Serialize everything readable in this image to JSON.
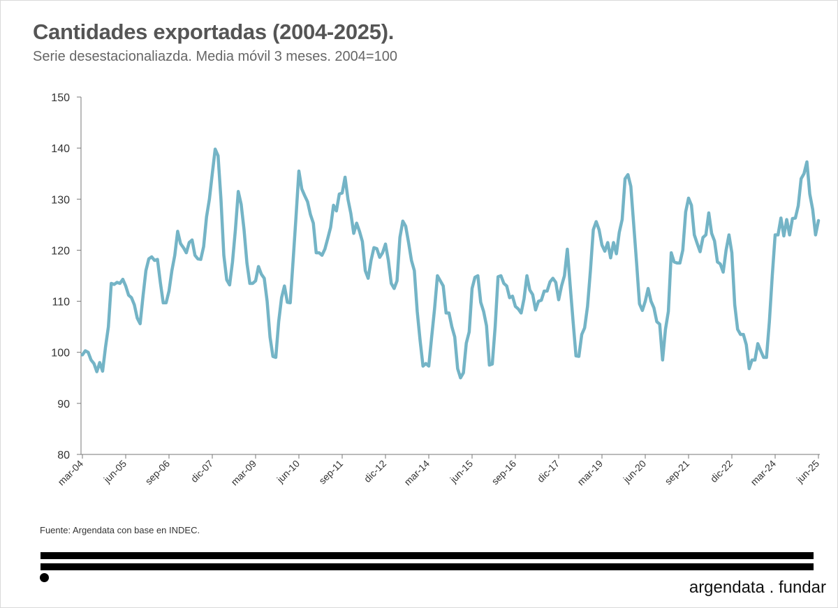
{
  "title": "Cantidades exportadas (2004-2025).",
  "subtitle": "Serie desestacionaliazda. Media móvil 3 meses. 2004=100",
  "source": "Fuente: Argendata con base en INDEC.",
  "brand": "argendata . fundar",
  "colors": {
    "line": "#74b4c6",
    "axis": "#777777",
    "text": "#333333"
  },
  "chart_data": {
    "type": "line",
    "title": "Cantidades exportadas (2004-2025).",
    "xlabel": "",
    "ylabel": "",
    "ylim": [
      80,
      150
    ],
    "yticks": [
      80,
      90,
      100,
      110,
      120,
      130,
      140,
      150
    ],
    "xticks": [
      "mar-04",
      "jun-05",
      "sep-06",
      "dic-07",
      "mar-09",
      "jun-10",
      "sep-11",
      "dic-12",
      "mar-14",
      "jun-15",
      "sep-16",
      "dic-17",
      "mar-19",
      "jun-20",
      "sep-21",
      "dic-22",
      "mar-24",
      "jun-25"
    ],
    "grid": false,
    "start": "mar-04",
    "frequency": "monthly",
    "values": [
      99.5,
      100.3,
      100.0,
      98.5,
      97.8,
      96.2,
      98.0,
      96.3,
      101.0,
      105.0,
      113.5,
      113.3,
      113.7,
      113.5,
      114.3,
      113.0,
      111.2,
      110.7,
      109.3,
      106.7,
      105.6,
      111.0,
      116.0,
      118.3,
      118.7,
      118.0,
      118.2,
      113.7,
      109.7,
      109.7,
      112.0,
      116.0,
      119.0,
      123.7,
      121.3,
      120.5,
      119.5,
      121.5,
      122.0,
      119.0,
      118.3,
      118.2,
      120.7,
      126.5,
      130.0,
      135.0,
      139.8,
      138.5,
      130.0,
      119.0,
      114.2,
      113.2,
      117.7,
      124.0,
      131.5,
      129.0,
      124.0,
      117.5,
      113.5,
      113.5,
      114.0,
      116.8,
      115.3,
      114.5,
      110.0,
      103.0,
      99.2,
      99.0,
      106.0,
      110.7,
      113.0,
      109.8,
      109.7,
      118.0,
      126.5,
      135.5,
      132.0,
      130.7,
      129.5,
      127.0,
      125.3,
      119.5,
      119.5,
      119.0,
      120.2,
      122.3,
      124.5,
      128.8,
      127.7,
      131.0,
      131.2,
      134.3,
      130.0,
      127.2,
      123.3,
      125.3,
      123.7,
      121.7,
      116.0,
      114.5,
      118.0,
      120.5,
      120.3,
      118.6,
      119.5,
      121.2,
      118.0,
      113.5,
      112.5,
      114.0,
      122.5,
      125.7,
      124.7,
      121.5,
      118.0,
      116.0,
      108.0,
      102.3,
      97.3,
      97.8,
      97.3,
      103.0,
      108.5,
      115.0,
      114.0,
      113.0,
      107.7,
      107.7,
      105.0,
      103.0,
      96.8,
      95.0,
      96.0,
      101.8,
      104.0,
      112.5,
      114.7,
      115.0,
      109.8,
      108.0,
      105.2,
      97.5,
      97.7,
      105.0,
      114.8,
      115.0,
      113.5,
      113.0,
      110.7,
      111.0,
      109.0,
      108.5,
      107.7,
      110.5,
      115.0,
      112.2,
      111.3,
      108.3,
      110.0,
      110.2,
      112.0,
      112.0,
      113.8,
      114.5,
      113.7,
      110.3,
      113.0,
      115.0,
      120.2,
      113.0,
      106.0,
      99.3,
      99.2,
      103.5,
      104.8,
      109.0,
      116.0,
      124.0,
      125.6,
      124.0,
      121.0,
      119.8,
      121.5,
      118.5,
      121.5,
      119.3,
      123.5,
      126.0,
      134.0,
      134.8,
      132.5,
      125.0,
      117.5,
      109.5,
      108.2,
      110.0,
      112.5,
      110.0,
      108.7,
      106.0,
      105.5,
      98.5,
      104.5,
      108.0,
      119.5,
      117.7,
      117.5,
      117.5,
      120.0,
      127.5,
      130.2,
      128.8,
      123.0,
      121.3,
      119.7,
      122.5,
      123.0,
      127.3,
      123.3,
      121.8,
      117.7,
      117.3,
      115.7,
      120.0,
      123.0,
      119.5,
      109.3,
      104.5,
      103.5,
      103.5,
      101.5,
      96.8,
      98.5,
      98.5,
      101.7,
      100.3,
      99.0,
      99.0,
      106.0,
      115.0,
      123.0,
      123.0,
      126.3,
      122.8,
      126.0,
      123.0,
      126.2,
      126.3,
      128.7,
      134.0,
      135.0,
      137.3,
      131.0,
      128.0,
      123.0,
      125.8
    ]
  }
}
